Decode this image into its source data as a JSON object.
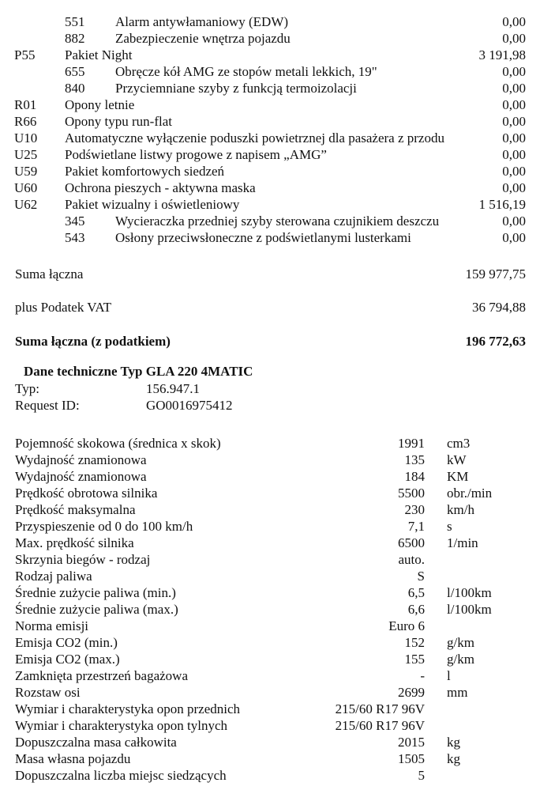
{
  "options": [
    {
      "code": "",
      "sub": "551",
      "desc": "Alarm antywłamaniowy (EDW)",
      "amount": "0,00"
    },
    {
      "code": "",
      "sub": "882",
      "desc": "Zabezpieczenie wnętrza pojazdu",
      "amount": "0,00"
    },
    {
      "code": "P55",
      "sub": "",
      "desc": "Pakiet Night",
      "amount": "3 191,98"
    },
    {
      "code": "",
      "sub": "655",
      "desc": "Obręcze kół AMG ze stopów metali lekkich, 19\"",
      "amount": "0,00"
    },
    {
      "code": "",
      "sub": "840",
      "desc": "Przyciemniane szyby z funkcją termoizolacji",
      "amount": "0,00"
    },
    {
      "code": "R01",
      "sub": "",
      "desc": "Opony letnie",
      "amount": "0,00"
    },
    {
      "code": "R66",
      "sub": "",
      "desc": "Opony typu run-flat",
      "amount": "0,00"
    },
    {
      "code": "U10",
      "sub": "",
      "desc": "Automatyczne wyłączenie poduszki powietrznej dla pasażera z przodu",
      "amount": "0,00"
    },
    {
      "code": "U25",
      "sub": "",
      "desc": "Podświetlane listwy progowe z napisem „AMG”",
      "amount": "0,00"
    },
    {
      "code": "U59",
      "sub": "",
      "desc": "Pakiet komfortowych siedzeń",
      "amount": "0,00"
    },
    {
      "code": "U60",
      "sub": "",
      "desc": "Ochrona pieszych - aktywna maska",
      "amount": "0,00"
    },
    {
      "code": "U62",
      "sub": "",
      "desc": "Pakiet wizualny i oświetleniowy",
      "amount": "1 516,19"
    },
    {
      "code": "",
      "sub": "345",
      "desc": "Wycieraczka przedniej szyby sterowana czujnikiem deszczu",
      "amount": "0,00"
    },
    {
      "code": "",
      "sub": "543",
      "desc": "Osłony przeciwsłoneczne z podświetlanymi lusterkami",
      "amount": "0,00"
    }
  ],
  "totals": {
    "sum_label": "Suma łączna",
    "sum_value": "159 977,75",
    "vat_label": "plus Podatek VAT",
    "vat_value": "36 794,88",
    "gross_label": "Suma łączna (z podatkiem)",
    "gross_value": "196 772,63"
  },
  "tech": {
    "title": "Dane techniczne Typ GLA 220 4MATIC",
    "type_label": "Typ:",
    "type_value": "156.947.1",
    "request_label": "Request ID:",
    "request_value": "GO0016975412",
    "rows": [
      {
        "label": "Pojemność skokowa (średnica x skok)",
        "value": "1991",
        "unit": "cm3"
      },
      {
        "label": "Wydajność znamionowa",
        "value": "135",
        "unit": "kW"
      },
      {
        "label": "Wydajność znamionowa",
        "value": "184",
        "unit": "KM"
      },
      {
        "label": "Prędkość obrotowa silnika",
        "value": "5500",
        "unit": "obr./min"
      },
      {
        "label": "Prędkość maksymalna",
        "value": "230",
        "unit": "km/h"
      },
      {
        "label": "Przyspieszenie od 0 do 100 km/h",
        "value": "7,1",
        "unit": "s"
      },
      {
        "label": "Max. prędkość silnika",
        "value": "6500",
        "unit": "1/min"
      },
      {
        "label": "Skrzynia biegów - rodzaj",
        "value": "auto.",
        "unit": ""
      },
      {
        "label": "Rodzaj paliwa",
        "value": "S",
        "unit": ""
      },
      {
        "label": "Średnie zużycie paliwa (min.)",
        "value": "6,5",
        "unit": "l/100km"
      },
      {
        "label": "Średnie zużycie paliwa (max.)",
        "value": "6,6",
        "unit": "l/100km"
      },
      {
        "label": "Norma emisji",
        "value": "Euro 6",
        "unit": ""
      },
      {
        "label": "Emisja CO2 (min.)",
        "value": "152",
        "unit": "g/km"
      },
      {
        "label": "Emisja CO2 (max.)",
        "value": "155",
        "unit": "g/km"
      },
      {
        "label": "Zamknięta przestrzeń bagażowa",
        "value": "-",
        "unit": "l"
      },
      {
        "label": "Rozstaw osi",
        "value": "2699",
        "unit": "mm"
      },
      {
        "label": "Wymiar i charakterystyka opon przednich",
        "value": "215/60 R17 96V",
        "unit": ""
      },
      {
        "label": "Wymiar i charakterystyka opon tylnych",
        "value": "215/60 R17 96V",
        "unit": ""
      },
      {
        "label": "Dopuszczalna masa całkowita",
        "value": "2015",
        "unit": "kg"
      },
      {
        "label": "Masa własna pojazdu",
        "value": "1505",
        "unit": "kg"
      },
      {
        "label": "Dopuszczalna liczba miejsc siedzących",
        "value": "5",
        "unit": ""
      }
    ]
  }
}
